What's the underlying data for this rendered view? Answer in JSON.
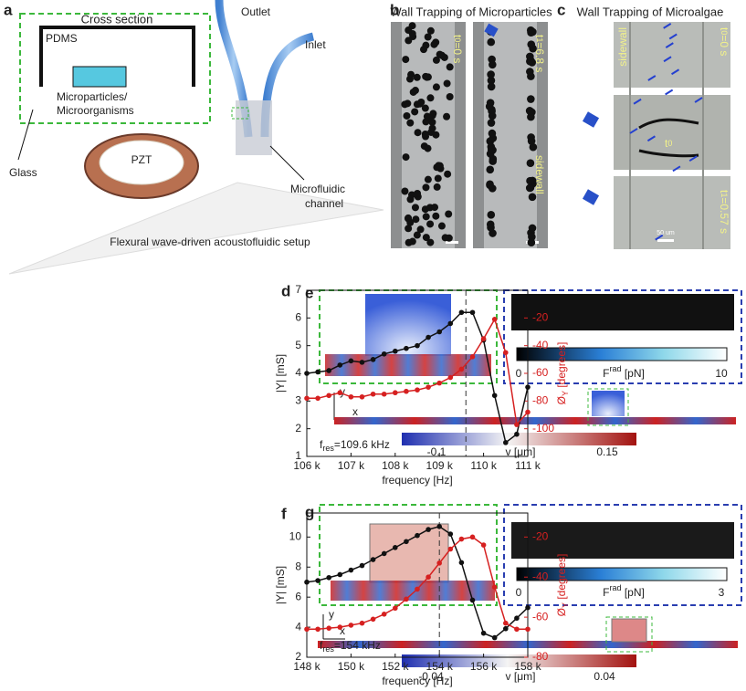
{
  "panels": {
    "a": {
      "label": "a",
      "cross_section": "Cross section",
      "pdms": "PDMS",
      "particles": "Microparticles/",
      "organisms": "Microorganisms",
      "glass": "Glass",
      "pzt": "PZT",
      "outlet": "Outlet",
      "inlet": "Inlet",
      "channel1": "Microfluidic",
      "channel2": "channel",
      "caption": "Flexural wave-driven acoustofluidic setup"
    },
    "b": {
      "label": "b",
      "title": "Wall Trapping of Microparticles",
      "t0": [
        "t",
        "0",
        "=0 s"
      ],
      "t1": [
        "t",
        "1",
        "=6.8 s"
      ],
      "sidewall": "sidewall"
    },
    "c": {
      "label": "c",
      "title": "Wall Trapping of Microalgae",
      "sidewall": "sidewall",
      "t0": [
        "t",
        "0",
        "=0 s"
      ],
      "t1": [
        "t",
        "1",
        "=0.57 s"
      ],
      "scale": "50 um",
      "track0": [
        "t",
        "0"
      ]
    },
    "e": {
      "label": "e",
      "force_min": "0",
      "force_label": [
        "F",
        "rad",
        " [pN]"
      ],
      "force_max": "10",
      "axis_y": "y",
      "axis_x": "x",
      "v_min": "-0.1",
      "v_label": "v [μm]",
      "v_max": "0.15"
    },
    "g": {
      "label": "g",
      "force_min": "0",
      "force_label": [
        "F",
        "rad",
        " [pN]"
      ],
      "force_max": "3",
      "axis_y": "y",
      "axis_x": "x",
      "v_min": "-0.04",
      "v_label": "v [μm]",
      "v_max": "0.04"
    }
  },
  "chart_data": [
    {
      "type": "line",
      "label": "d",
      "xlabel": "frequency [Hz]",
      "ylabel": "|Y| [mS]",
      "y2label": [
        "Ø",
        "Y",
        " [degrees]"
      ],
      "x": [
        106000,
        106250,
        106500,
        106750,
        107000,
        107250,
        107500,
        107750,
        108000,
        108250,
        108500,
        108750,
        109000,
        109250,
        109500,
        109750,
        110000,
        110250,
        110500,
        110750,
        111000
      ],
      "xlim": [
        106000,
        111000
      ],
      "xticks": [
        {
          "value": 106000,
          "label": "106 k"
        },
        {
          "value": 107000,
          "label": "107 k"
        },
        {
          "value": 108000,
          "label": "108 k"
        },
        {
          "value": 109000,
          "label": "109 k"
        },
        {
          "value": 110000,
          "label": "110 k"
        },
        {
          "value": 111000,
          "label": "111 k"
        }
      ],
      "ylim": [
        1,
        7
      ],
      "yticks": [
        1,
        2,
        3,
        4,
        5,
        6,
        7
      ],
      "y2lim": [
        -120,
        0
      ],
      "y2ticks": [
        -20,
        -40,
        -60,
        -80,
        -100
      ],
      "series": [
        {
          "color": "#111111",
          "values": [
            4.0,
            4.05,
            4.1,
            4.3,
            4.45,
            4.4,
            4.5,
            4.7,
            4.8,
            4.9,
            5.0,
            5.3,
            5.5,
            5.8,
            6.2,
            6.2,
            5.2,
            3.2,
            1.5,
            1.8,
            3.5
          ]
        },
        {
          "color": "#d62020",
          "axis": "y2",
          "values": [
            -78,
            -78,
            -76,
            -74,
            -77,
            -77,
            -75,
            -75,
            -74,
            -73,
            -72,
            -70,
            -67,
            -63,
            -57,
            -48,
            -35,
            -21,
            -45,
            -97,
            -88
          ]
        }
      ],
      "vline": 109600,
      "annotation": [
        "f",
        "res",
        "=109.6 kHz"
      ]
    },
    {
      "type": "line",
      "label": "f",
      "xlabel": "frequency [Hz]",
      "ylabel": "|Y| [mS]",
      "y2label": [
        "Ø",
        "Y",
        " [degrees]"
      ],
      "x": [
        148000,
        148500,
        149000,
        149500,
        150000,
        150500,
        151000,
        151500,
        152000,
        152500,
        153000,
        153500,
        154000,
        154500,
        155000,
        155500,
        156000,
        156500,
        157000,
        157500,
        158000
      ],
      "xlim": [
        148000,
        158000
      ],
      "xticks": [
        {
          "value": 148000,
          "label": "148 k"
        },
        {
          "value": 150000,
          "label": "150 k"
        },
        {
          "value": 152000,
          "label": "152 k"
        },
        {
          "value": 154000,
          "label": "154 k"
        },
        {
          "value": 156000,
          "label": "156 k"
        },
        {
          "value": 158000,
          "label": "158 k"
        }
      ],
      "ylim": [
        2,
        11.6
      ],
      "yticks": [
        2,
        4,
        6,
        8,
        10
      ],
      "y2lim": [
        -80,
        -8
      ],
      "y2ticks": [
        -20,
        -40,
        -60,
        -80
      ],
      "series": [
        {
          "color": "#111111",
          "values": [
            7.0,
            7.1,
            7.3,
            7.5,
            7.8,
            8.1,
            8.5,
            8.9,
            9.3,
            9.7,
            10.1,
            10.5,
            10.7,
            10.2,
            8.3,
            5.8,
            3.6,
            3.3,
            3.9,
            4.6,
            5.3
          ]
        },
        {
          "color": "#d62020",
          "axis": "y2",
          "values": [
            -66,
            -66,
            -65.5,
            -65,
            -64,
            -63,
            -61,
            -58.5,
            -55.5,
            -51,
            -46,
            -40,
            -33,
            -26,
            -21,
            -20,
            -24,
            -45,
            -63,
            -66,
            -66
          ]
        }
      ],
      "vline": 154000,
      "annotation": [
        "f",
        "res",
        "=154 kHz"
      ]
    }
  ]
}
